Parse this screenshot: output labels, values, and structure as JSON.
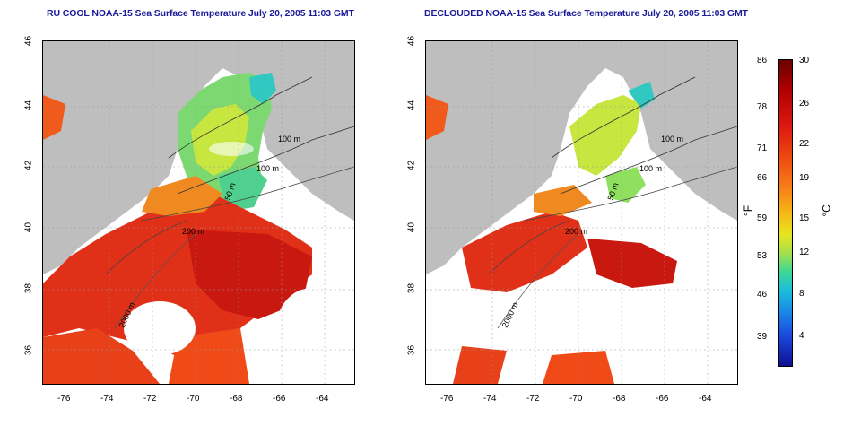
{
  "maps": [
    {
      "title": "RU COOL NOAA-15 Sea Surface Temperature July 20, 2005 11:03 GMT",
      "contour_labels": [
        "100 m",
        "100 m",
        "50 m",
        "200 m",
        "2000 m"
      ]
    },
    {
      "title": "DECLOUDED NOAA-15 Sea Surface Temperature July 20, 2005 11:03 GMT",
      "contour_labels": [
        "100 m",
        "100 m",
        "50 m",
        "200 m",
        "2000 m"
      ]
    }
  ],
  "axes": {
    "x_ticks": [
      "-76",
      "-74",
      "-72",
      "-70",
      "-68",
      "-66",
      "-64"
    ],
    "y_ticks": [
      "46",
      "44",
      "42",
      "40",
      "38",
      "36"
    ]
  },
  "colorbar": {
    "fahrenheit_ticks": [
      "86",
      "78",
      "71",
      "66",
      "59",
      "53",
      "46",
      "39"
    ],
    "celsius_ticks": [
      "30",
      "26",
      "22",
      "19",
      "15",
      "12",
      "8",
      "4"
    ],
    "fahrenheit_unit": "°F",
    "celsius_unit": "°C"
  },
  "colors": {
    "land": "#bebebe",
    "title": "#1a1a9a",
    "warm": "#e02010",
    "cool": "#30d0a0"
  }
}
